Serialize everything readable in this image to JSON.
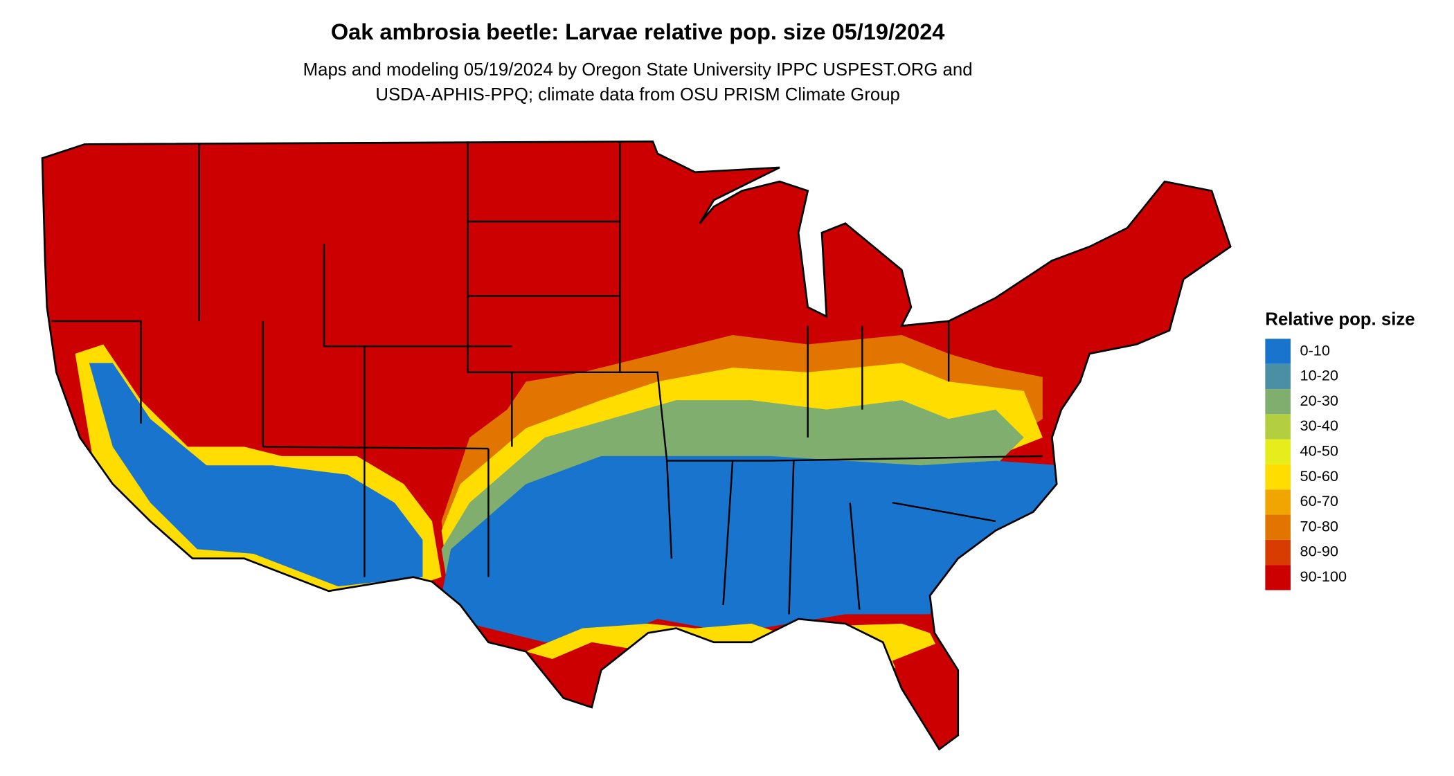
{
  "title": "Oak ambrosia beetle: Larvae relative pop. size 05/19/2024",
  "subtitle": [
    "Maps and modeling 05/19/2024 by Oregon State University IPPC USPEST.ORG and",
    "USDA-APHIS-PPQ; climate data from OSU PRISM Climate Group"
  ],
  "legend": {
    "title": "Relative pop. size",
    "items": [
      {
        "label": "0-10",
        "color": "#1874cd"
      },
      {
        "label": "10-20",
        "color": "#4a8fa3"
      },
      {
        "label": "20-30",
        "color": "#7fae6e"
      },
      {
        "label": "30-40",
        "color": "#b3cf3f"
      },
      {
        "label": "40-50",
        "color": "#e5ee1c"
      },
      {
        "label": "50-60",
        "color": "#ffdd00"
      },
      {
        "label": "60-70",
        "color": "#f0a500"
      },
      {
        "label": "70-80",
        "color": "#e17500"
      },
      {
        "label": "80-90",
        "color": "#d83c00"
      },
      {
        "label": "90-100",
        "color": "#cc0000"
      }
    ]
  }
}
